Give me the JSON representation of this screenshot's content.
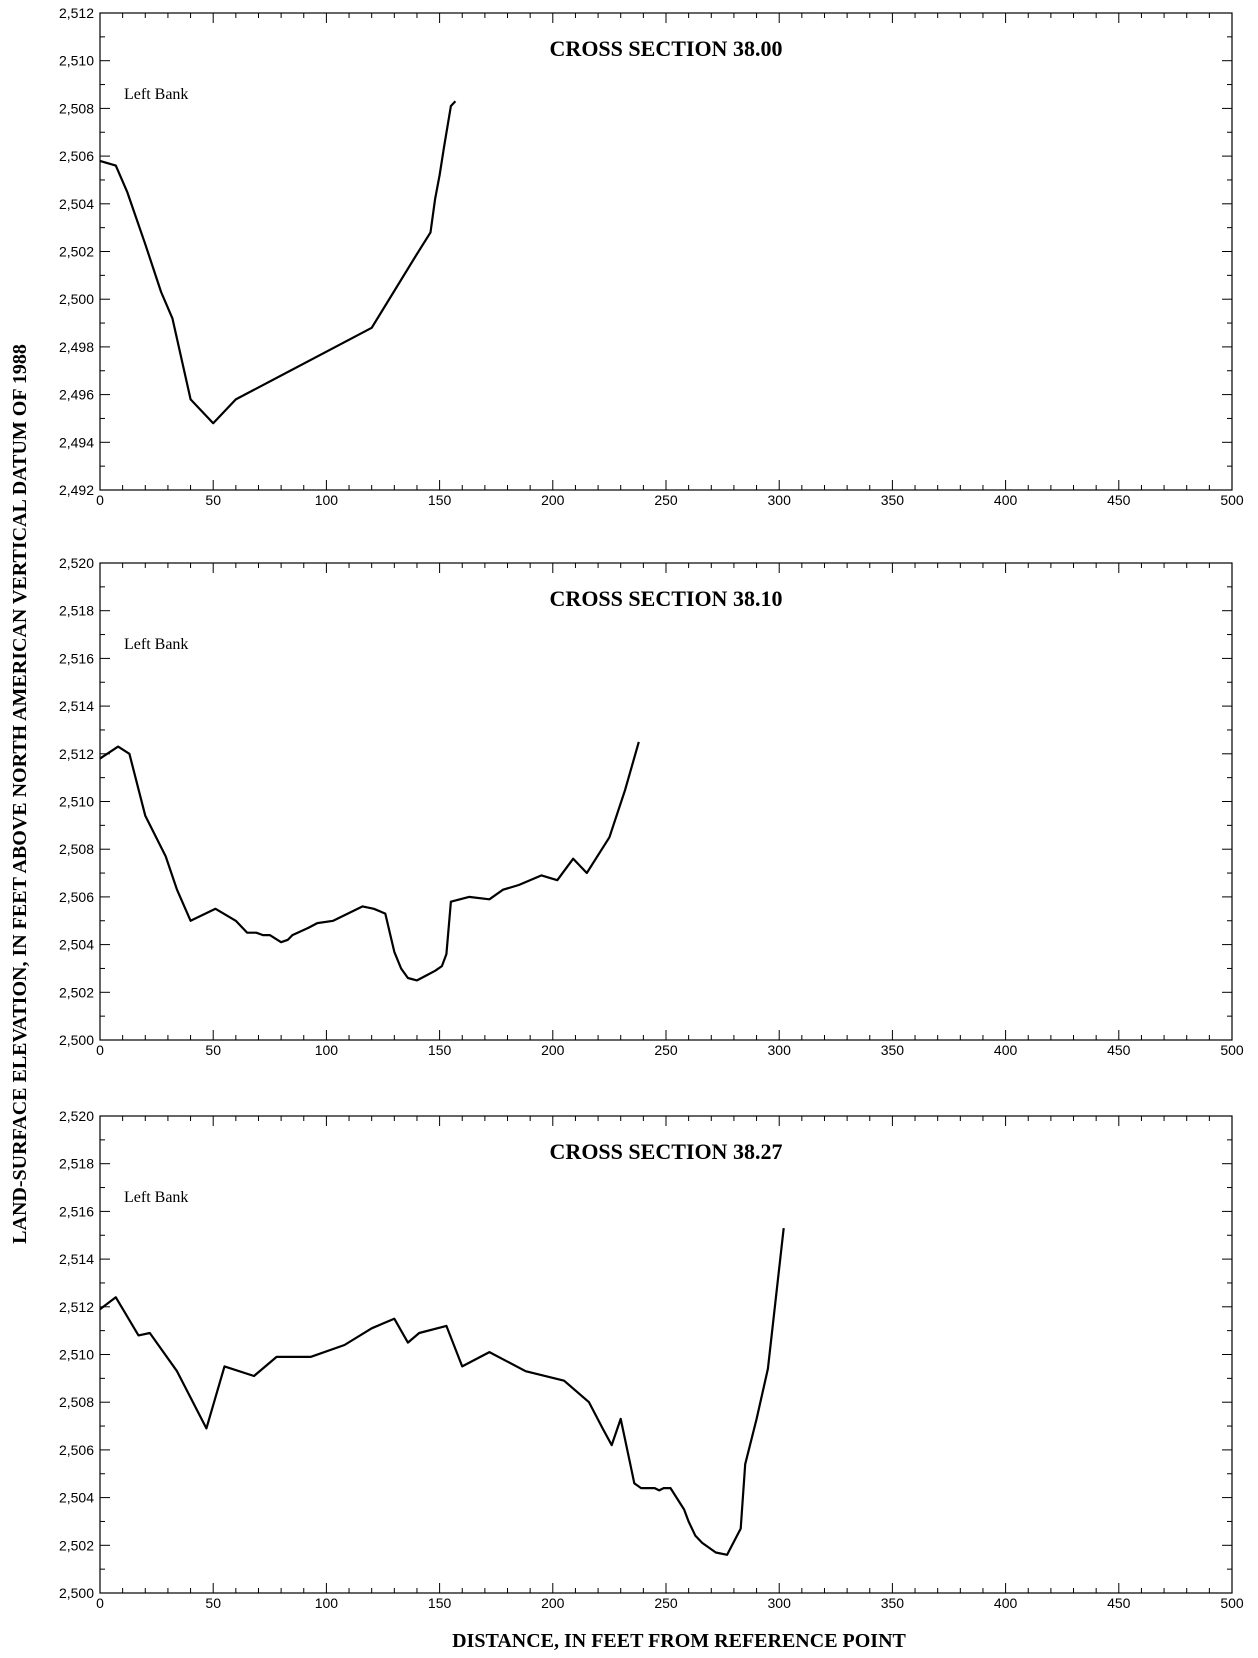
{
  "axis_titles": {
    "y": "LAND-SURFACE ELEVATION, IN FEET ABOVE NORTH AMERICAN VERTICAL DATUM OF 1988",
    "x": "DISTANCE, IN FEET FROM REFERENCE POINT"
  },
  "chart_data": [
    {
      "type": "line",
      "title": "CROSS SECTION 38.00",
      "annotation": "Left Bank",
      "xlim": [
        0,
        500
      ],
      "ylim": [
        2492,
        2512
      ],
      "xticks": [
        0,
        50,
        100,
        150,
        200,
        250,
        300,
        350,
        400,
        450,
        500
      ],
      "xtick_labels": [
        "0",
        "50",
        "100",
        "150",
        "200",
        "250",
        "300",
        "350",
        "400",
        "450",
        "500"
      ],
      "yticks": [
        2492,
        2494,
        2496,
        2498,
        2500,
        2502,
        2504,
        2506,
        2508,
        2510,
        2512
      ],
      "ytick_labels": [
        "2,492",
        "2,494",
        "2,496",
        "2,498",
        "2,500",
        "2,502",
        "2,504",
        "2,506",
        "2,508",
        "2,510",
        "2,512"
      ],
      "grid": false,
      "series": [
        {
          "x": [
            0,
            7,
            12,
            20,
            27,
            32,
            40,
            50,
            60,
            120,
            140,
            146,
            148,
            150,
            152,
            155,
            157
          ],
          "y": [
            2505.8,
            2505.6,
            2504.5,
            2502.3,
            2500.3,
            2499.2,
            2495.8,
            2494.8,
            2495.8,
            2498.8,
            2501.9,
            2502.8,
            2504.2,
            2505.2,
            2506.4,
            2508.1,
            2508.3
          ]
        }
      ]
    },
    {
      "type": "line",
      "title": "CROSS SECTION 38.10",
      "annotation": "Left Bank",
      "xlim": [
        0,
        500
      ],
      "ylim": [
        2500,
        2520
      ],
      "xticks": [
        0,
        50,
        100,
        150,
        200,
        250,
        300,
        350,
        400,
        450,
        500
      ],
      "xtick_labels": [
        "0",
        "50",
        "100",
        "150",
        "200",
        "250",
        "300",
        "350",
        "400",
        "450",
        "500"
      ],
      "yticks": [
        2500,
        2502,
        2504,
        2506,
        2508,
        2510,
        2512,
        2514,
        2516,
        2518,
        2520
      ],
      "ytick_labels": [
        "2,500",
        "2,502",
        "2,504",
        "2,506",
        "2,508",
        "2,510",
        "2,512",
        "2,514",
        "2,516",
        "2,518",
        "2,520"
      ],
      "grid": false,
      "series": [
        {
          "x": [
            0,
            8,
            13,
            20,
            29,
            34,
            40,
            51,
            60,
            65,
            69,
            72,
            75,
            80,
            83,
            85,
            92,
            96,
            103,
            116,
            121,
            126,
            128,
            130,
            133,
            136,
            140,
            144,
            148,
            151,
            153,
            155,
            163,
            172,
            178,
            185,
            195,
            202,
            209,
            215,
            225,
            232,
            238
          ],
          "y": [
            2511.8,
            2512.3,
            2512.0,
            2509.4,
            2507.7,
            2506.3,
            2505.0,
            2505.5,
            2505.0,
            2504.5,
            2504.5,
            2504.4,
            2504.4,
            2504.1,
            2504.2,
            2504.4,
            2504.7,
            2504.9,
            2505.0,
            2505.6,
            2505.5,
            2505.3,
            2504.5,
            2503.7,
            2503.0,
            2502.6,
            2502.5,
            2502.7,
            2502.9,
            2503.1,
            2503.6,
            2505.8,
            2506.0,
            2505.9,
            2506.3,
            2506.5,
            2506.9,
            2506.7,
            2507.6,
            2507.0,
            2508.5,
            2510.5,
            2512.5
          ]
        }
      ]
    },
    {
      "type": "line",
      "title": "CROSS SECTION 38.27",
      "annotation": "Left Bank",
      "xlim": [
        0,
        500
      ],
      "ylim": [
        2500,
        2520
      ],
      "xticks": [
        0,
        50,
        100,
        150,
        200,
        250,
        300,
        350,
        400,
        450,
        500
      ],
      "xtick_labels": [
        "0",
        "50",
        "100",
        "150",
        "200",
        "250",
        "300",
        "350",
        "400",
        "450",
        "500"
      ],
      "yticks": [
        2500,
        2502,
        2504,
        2506,
        2508,
        2510,
        2512,
        2514,
        2516,
        2518,
        2520
      ],
      "ytick_labels": [
        "2,500",
        "2,502",
        "2,504",
        "2,506",
        "2,508",
        "2,510",
        "2,512",
        "2,514",
        "2,516",
        "2,518",
        "2,520"
      ],
      "grid": false,
      "series": [
        {
          "x": [
            0,
            7,
            17,
            22,
            34,
            47,
            55,
            68,
            78,
            93,
            108,
            120,
            130,
            136,
            141,
            153,
            160,
            172,
            188,
            205,
            216,
            222,
            226,
            230,
            234,
            236,
            239,
            245,
            247,
            249,
            252,
            258,
            260,
            263,
            266,
            272,
            277,
            283,
            285,
            290,
            295,
            302
          ],
          "y": [
            2511.9,
            2512.4,
            2510.8,
            2510.9,
            2509.3,
            2506.9,
            2509.5,
            2509.1,
            2509.9,
            2509.9,
            2510.4,
            2511.1,
            2511.5,
            2510.5,
            2510.9,
            2511.2,
            2509.5,
            2510.1,
            2509.3,
            2508.9,
            2508.0,
            2506.9,
            2506.2,
            2507.3,
            2505.5,
            2504.6,
            2504.4,
            2504.4,
            2504.3,
            2504.4,
            2504.4,
            2503.5,
            2503.0,
            2502.4,
            2502.1,
            2501.7,
            2501.6,
            2502.7,
            2505.4,
            2507.3,
            2509.4,
            2515.3
          ]
        }
      ]
    }
  ]
}
